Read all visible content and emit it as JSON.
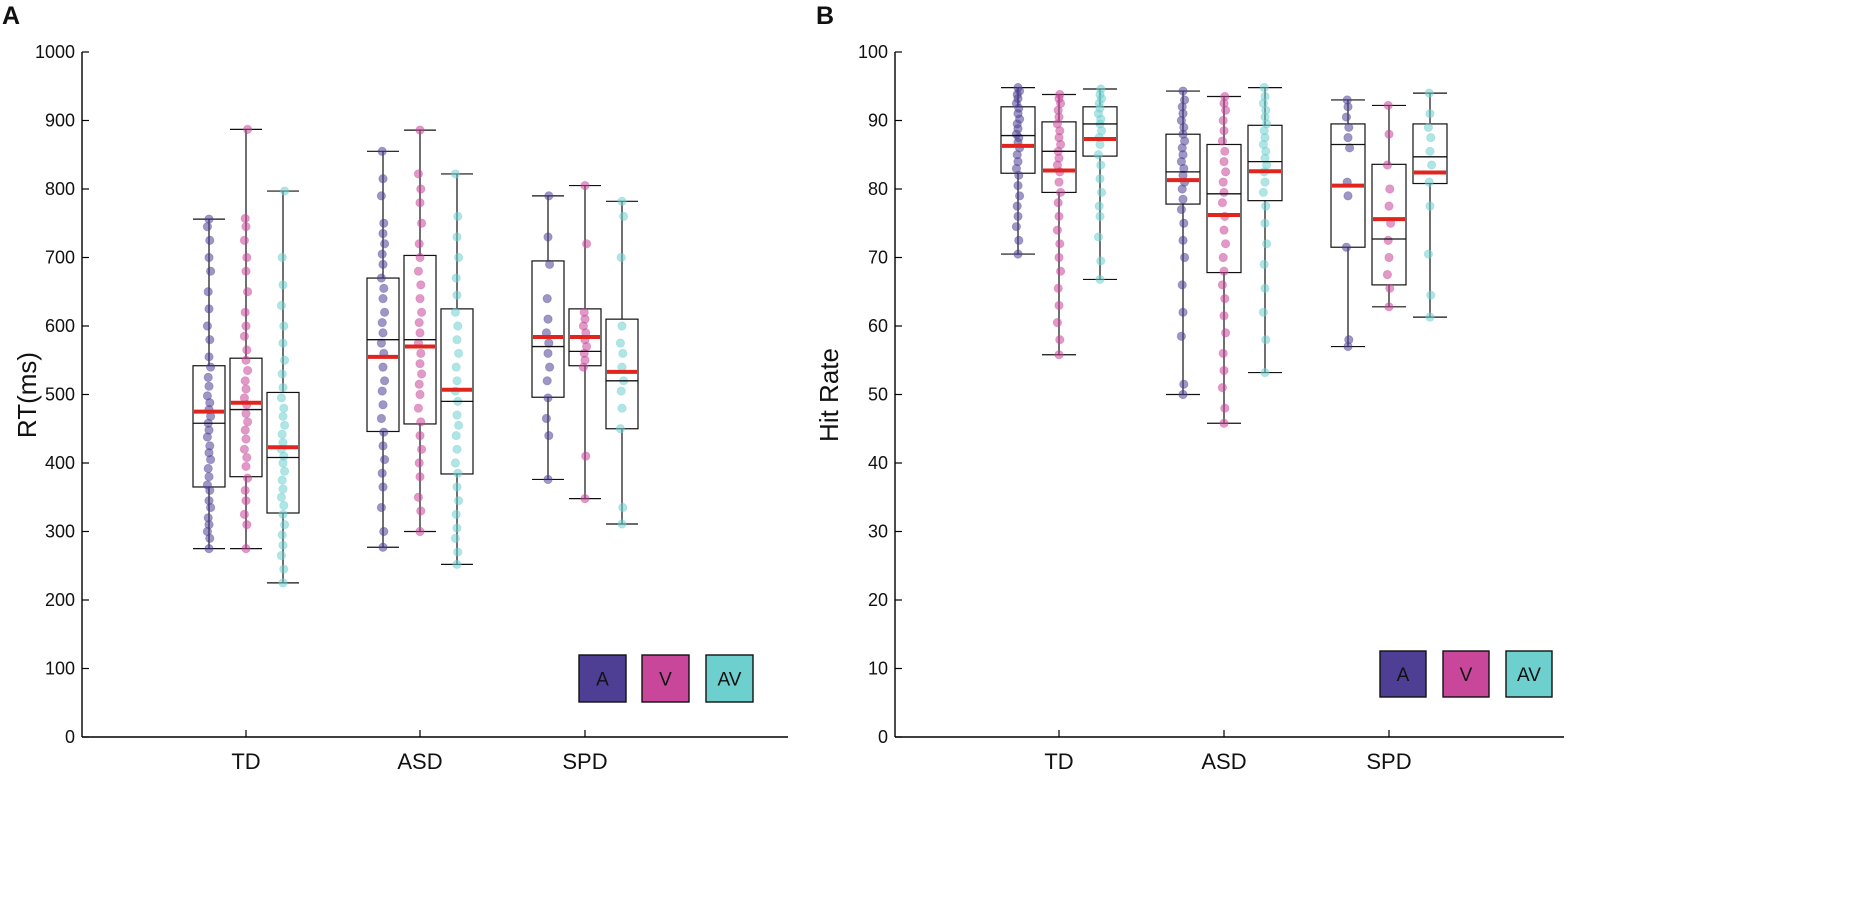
{
  "chart_data": [
    {
      "type": "box",
      "panel_label": "A",
      "ylabel": "RT(ms)",
      "xlabel": "",
      "ylim": [
        0,
        1000
      ],
      "yticks": [
        0,
        100,
        200,
        300,
        400,
        500,
        600,
        700,
        800,
        900,
        1000
      ],
      "categories": [
        "TD",
        "ASD",
        "SPD"
      ],
      "legend": {
        "placement": "bottom-right",
        "entries": [
          "A",
          "V",
          "AV"
        ]
      },
      "series": [
        {
          "name": "A",
          "color": "#4f3f94",
          "boxes": [
            {
              "category": "TD",
              "min": 275,
              "q1": 365,
              "median": 458,
              "q3": 542,
              "max": 756,
              "mean": 475,
              "points": [
                275,
                290,
                300,
                310,
                320,
                335,
                345,
                360,
                368,
                380,
                392,
                405,
                415,
                425,
                438,
                448,
                458,
                468,
                478,
                488,
                498,
                512,
                525,
                540,
                555,
                580,
                600,
                625,
                650,
                680,
                700,
                725,
                745,
                756
              ]
            },
            {
              "category": "ASD",
              "min": 277,
              "q1": 446,
              "median": 580,
              "q3": 670,
              "max": 855,
              "mean": 555,
              "points": [
                277,
                300,
                335,
                365,
                385,
                405,
                425,
                445,
                465,
                485,
                505,
                520,
                540,
                560,
                575,
                590,
                605,
                620,
                640,
                655,
                670,
                690,
                705,
                720,
                735,
                750,
                790,
                815,
                855
              ]
            },
            {
              "category": "SPD",
              "min": 376,
              "q1": 496,
              "median": 570,
              "q3": 695,
              "max": 790,
              "mean": 584,
              "points": [
                376,
                440,
                465,
                495,
                520,
                540,
                560,
                575,
                590,
                610,
                640,
                690,
                730,
                790
              ]
            }
          ]
        },
        {
          "name": "V",
          "color": "#c8479b",
          "boxes": [
            {
              "category": "TD",
              "min": 275,
              "q1": 380,
              "median": 478,
              "q3": 553,
              "max": 887,
              "mean": 488,
              "points": [
                275,
                310,
                325,
                345,
                360,
                378,
                395,
                408,
                420,
                435,
                448,
                460,
                472,
                485,
                495,
                508,
                520,
                535,
                550,
                565,
                585,
                600,
                620,
                650,
                680,
                700,
                725,
                745,
                757,
                887
              ]
            },
            {
              "category": "ASD",
              "min": 300,
              "q1": 457,
              "median": 580,
              "q3": 703,
              "max": 886,
              "mean": 570,
              "points": [
                300,
                330,
                350,
                380,
                400,
                420,
                440,
                460,
                480,
                500,
                515,
                530,
                545,
                560,
                575,
                590,
                605,
                620,
                640,
                660,
                680,
                700,
                720,
                750,
                780,
                800,
                822,
                886
              ]
            },
            {
              "category": "SPD",
              "min": 348,
              "q1": 542,
              "median": 563,
              "q3": 625,
              "max": 805,
              "mean": 584,
              "points": [
                348,
                410,
                540,
                550,
                560,
                570,
                580,
                590,
                600,
                610,
                620,
                720,
                805
              ]
            }
          ]
        },
        {
          "name": "AV",
          "color": "#6ecfcf",
          "boxes": [
            {
              "category": "TD",
              "min": 225,
              "q1": 327,
              "median": 408,
              "q3": 503,
              "max": 797,
              "mean": 423,
              "points": [
                225,
                245,
                265,
                280,
                295,
                310,
                325,
                338,
                350,
                362,
                375,
                388,
                400,
                410,
                420,
                430,
                442,
                455,
                468,
                480,
                495,
                510,
                530,
                550,
                575,
                600,
                630,
                660,
                700,
                797
              ]
            },
            {
              "category": "ASD",
              "min": 252,
              "q1": 384,
              "median": 490,
              "q3": 625,
              "max": 822,
              "mean": 507,
              "points": [
                252,
                270,
                290,
                305,
                325,
                345,
                365,
                385,
                400,
                420,
                440,
                455,
                470,
                490,
                505,
                520,
                540,
                560,
                580,
                600,
                620,
                645,
                670,
                700,
                730,
                760,
                822
              ]
            },
            {
              "category": "SPD",
              "min": 311,
              "q1": 450,
              "median": 520,
              "q3": 610,
              "max": 782,
              "mean": 533,
              "points": [
                311,
                335,
                450,
                480,
                505,
                520,
                540,
                560,
                575,
                600,
                700,
                760,
                782
              ]
            }
          ]
        }
      ]
    },
    {
      "type": "box",
      "panel_label": "B",
      "ylabel": "Hit Rate",
      "xlabel": "",
      "ylim": [
        0,
        100
      ],
      "yticks": [
        0,
        10,
        20,
        30,
        40,
        50,
        60,
        70,
        80,
        90,
        100
      ],
      "categories": [
        "TD",
        "ASD",
        "SPD"
      ],
      "legend": {
        "placement": "bottom-right",
        "entries": [
          "A",
          "V",
          "AV"
        ]
      },
      "series": [
        {
          "name": "A",
          "color": "#4f3f94",
          "boxes": [
            {
              "category": "TD",
              "min": 70.5,
              "q1": 82.3,
              "median": 87.8,
              "q3": 92,
              "max": 94.8,
              "mean": 86.3,
              "points": [
                70.5,
                72.5,
                74.5,
                76,
                77.5,
                79,
                80.5,
                82,
                83,
                84,
                85,
                86,
                86.8,
                87.5,
                88,
                88.8,
                89.5,
                90.2,
                91,
                91.8,
                92.5,
                93.2,
                93.8,
                94.3,
                94.8
              ]
            },
            {
              "category": "ASD",
              "min": 50,
              "q1": 77.8,
              "median": 82.5,
              "q3": 88,
              "max": 94.3,
              "mean": 81.3,
              "points": [
                50,
                51.5,
                58.5,
                62,
                66,
                70,
                72.5,
                75,
                77,
                78.5,
                80,
                81,
                82,
                83,
                84,
                85,
                86,
                87,
                88,
                89,
                90,
                91,
                92,
                93,
                94.3
              ]
            },
            {
              "category": "SPD",
              "min": 57,
              "q1": 71.5,
              "median": 86.5,
              "q3": 89.5,
              "max": 93,
              "mean": 80.5,
              "points": [
                57,
                58,
                71.5,
                79,
                81,
                86,
                87.5,
                89,
                90.5,
                92,
                93
              ]
            }
          ]
        },
        {
          "name": "V",
          "color": "#c8479b",
          "boxes": [
            {
              "category": "TD",
              "min": 55.8,
              "q1": 79.5,
              "median": 85.5,
              "q3": 89.8,
              "max": 93.8,
              "mean": 82.7,
              "points": [
                55.8,
                58,
                60.5,
                63,
                65.5,
                68,
                70,
                72,
                74,
                76,
                78,
                79.5,
                81,
                82.5,
                83.5,
                84.5,
                85.5,
                86.5,
                87.5,
                88.5,
                89.5,
                90.5,
                91.5,
                92.5,
                93.2,
                93.8
              ]
            },
            {
              "category": "ASD",
              "min": 45.8,
              "q1": 67.8,
              "median": 79.3,
              "q3": 86.5,
              "max": 93.5,
              "mean": 76.2,
              "points": [
                45.8,
                48,
                51,
                53.5,
                56,
                59,
                61.5,
                64,
                66,
                68,
                70,
                72,
                74,
                76,
                78,
                79.5,
                81,
                82.5,
                84,
                85.5,
                87,
                88.5,
                90,
                91.5,
                92.5,
                93.5
              ]
            },
            {
              "category": "SPD",
              "min": 62.8,
              "q1": 66,
              "median": 72.7,
              "q3": 83.6,
              "max": 92.2,
              "mean": 75.6,
              "points": [
                62.8,
                65.5,
                67.5,
                70,
                72.5,
                75,
                77.5,
                80,
                83.5,
                88,
                92.2
              ]
            }
          ]
        },
        {
          "name": "AV",
          "color": "#6ecfcf",
          "boxes": [
            {
              "category": "TD",
              "min": 66.8,
              "q1": 84.8,
              "median": 89.5,
              "q3": 92,
              "max": 94.6,
              "mean": 87.3,
              "points": [
                66.8,
                69.5,
                73,
                76,
                77.5,
                79.5,
                81.5,
                83.5,
                85,
                86.5,
                87.5,
                88.5,
                89.5,
                90.2,
                91,
                91.8,
                92.5,
                93.2,
                93.8,
                94.6
              ]
            },
            {
              "category": "ASD",
              "min": 53.2,
              "q1": 78.3,
              "median": 84,
              "q3": 89.3,
              "max": 94.8,
              "mean": 82.6,
              "points": [
                53.2,
                58,
                62,
                65.5,
                69,
                72,
                75,
                77.5,
                79.5,
                81,
                82.5,
                83.5,
                84.5,
                85.5,
                86.5,
                87.5,
                88.5,
                89.5,
                90.5,
                91.5,
                92.5,
                93.5,
                94.8
              ]
            },
            {
              "category": "SPD",
              "min": 61.3,
              "q1": 80.8,
              "median": 84.7,
              "q3": 89.5,
              "max": 94,
              "mean": 82.4,
              "points": [
                61.3,
                64.5,
                70.5,
                77.5,
                81,
                83.5,
                85.5,
                87.5,
                89,
                91,
                94
              ]
            }
          ]
        }
      ]
    }
  ]
}
